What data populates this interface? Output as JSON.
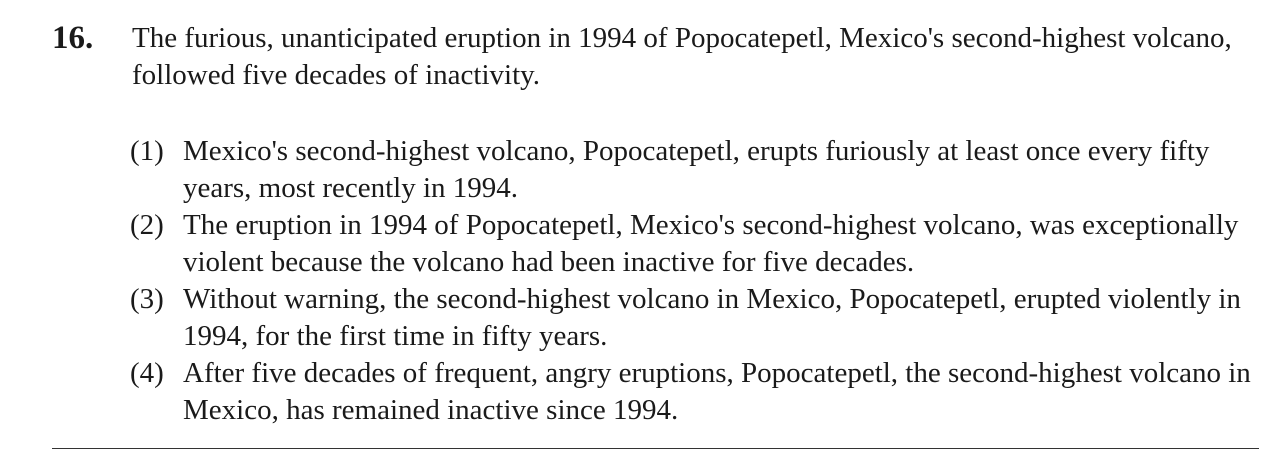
{
  "question": {
    "number": "16.",
    "stem": "The furious, unanticipated eruption in 1994 of Popocatepetl, Mexico's second-highest volcano, followed five decades of inactivity.",
    "options": [
      {
        "label": "(1)",
        "text": "Mexico's second-highest volcano, Popocatepetl, erupts furiously at least once every fifty years, most recently in 1994."
      },
      {
        "label": "(2)",
        "text": "The eruption in 1994 of Popocatepetl, Mexico's second-highest volcano, was exceptionally violent because the volcano had been inactive for five decades."
      },
      {
        "label": "(3)",
        "text": "Without warning, the second-highest volcano in Mexico, Popocatepetl, erupted violently in 1994, for the first time in fifty years."
      },
      {
        "label": "(4)",
        "text": "After five decades of frequent, angry eruptions, Popocatepetl, the second-highest volcano in Mexico, has remained inactive since 1994."
      }
    ]
  }
}
